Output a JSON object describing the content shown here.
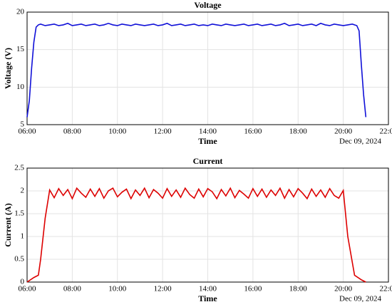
{
  "chart_data": [
    {
      "type": "line",
      "title": "Voltage",
      "xlabel": "Time",
      "ylabel": "Voltage (V)",
      "date_label": "Dec 09, 2024",
      "x": [
        6.0,
        6.1,
        6.2,
        6.3,
        6.4,
        6.5,
        6.6,
        6.8,
        7,
        7.2,
        7.4,
        7.6,
        7.8,
        8,
        8.2,
        8.4,
        8.6,
        8.8,
        9,
        9.2,
        9.4,
        9.6,
        9.8,
        10,
        10.2,
        10.4,
        10.6,
        10.8,
        11,
        11.2,
        11.4,
        11.6,
        11.8,
        12,
        12.2,
        12.4,
        12.6,
        12.8,
        13,
        13.2,
        13.4,
        13.6,
        13.8,
        14,
        14.2,
        14.4,
        14.6,
        14.8,
        15,
        15.2,
        15.4,
        15.6,
        15.8,
        16,
        16.2,
        16.4,
        16.6,
        16.8,
        17,
        17.2,
        17.4,
        17.6,
        17.8,
        18,
        18.2,
        18.4,
        18.6,
        18.8,
        19,
        19.2,
        19.4,
        19.6,
        19.8,
        20,
        20.2,
        20.4,
        20.6,
        20.7,
        20.8,
        20.9,
        21.0
      ],
      "series": [
        {
          "color": "#1010d8",
          "values": [
            6,
            8.2,
            12.5,
            16,
            18,
            18.3,
            18.4,
            18.2,
            18.3,
            18.4,
            18.2,
            18.3,
            18.5,
            18.2,
            18.3,
            18.4,
            18.2,
            18.3,
            18.4,
            18.2,
            18.3,
            18.5,
            18.3,
            18.2,
            18.4,
            18.3,
            18.2,
            18.4,
            18.3,
            18.2,
            18.3,
            18.4,
            18.2,
            18.3,
            18.5,
            18.2,
            18.3,
            18.4,
            18.2,
            18.3,
            18.4,
            18.2,
            18.3,
            18.2,
            18.4,
            18.3,
            18.2,
            18.4,
            18.3,
            18.2,
            18.3,
            18.4,
            18.2,
            18.3,
            18.4,
            18.2,
            18.3,
            18.4,
            18.2,
            18.3,
            18.5,
            18.2,
            18.3,
            18.4,
            18.2,
            18.3,
            18.4,
            18.2,
            18.5,
            18.3,
            18.2,
            18.4,
            18.3,
            18.2,
            18.3,
            18.4,
            18.2,
            17.5,
            13,
            9,
            6
          ]
        }
      ],
      "xlim": [
        6,
        22
      ],
      "xticks": [
        {
          "value": 6,
          "label": "06:00"
        },
        {
          "value": 8,
          "label": "08:00"
        },
        {
          "value": 10,
          "label": "10:00"
        },
        {
          "value": 12,
          "label": "12:00"
        },
        {
          "value": 14,
          "label": "14:00"
        },
        {
          "value": 16,
          "label": "16:00"
        },
        {
          "value": 18,
          "label": "18:00"
        },
        {
          "value": 20,
          "label": "20:00"
        },
        {
          "value": 22,
          "label": "22:00"
        }
      ],
      "ylim": [
        5,
        20
      ],
      "yticks": [
        5,
        10,
        15,
        20
      ],
      "grid": true
    },
    {
      "type": "line",
      "title": "Current",
      "xlabel": "Time",
      "ylabel": "Current (A)",
      "date_label": "Dec 09, 2024",
      "x": [
        6.0,
        6.3,
        6.5,
        6.6,
        6.8,
        7,
        7.2,
        7.4,
        7.6,
        7.8,
        8,
        8.2,
        8.4,
        8.6,
        8.8,
        9,
        9.2,
        9.4,
        9.6,
        9.8,
        10,
        10.2,
        10.4,
        10.6,
        10.8,
        11,
        11.2,
        11.4,
        11.6,
        11.8,
        12,
        12.2,
        12.4,
        12.6,
        12.8,
        13,
        13.2,
        13.4,
        13.6,
        13.8,
        14,
        14.2,
        14.4,
        14.6,
        14.8,
        15,
        15.2,
        15.4,
        15.6,
        15.8,
        16,
        16.2,
        16.4,
        16.6,
        16.8,
        17,
        17.2,
        17.4,
        17.6,
        17.8,
        18,
        18.2,
        18.4,
        18.6,
        18.8,
        19,
        19.2,
        19.4,
        19.6,
        19.8,
        20,
        20.2,
        20.5,
        20.8,
        21.0
      ],
      "series": [
        {
          "color": "#dd0000",
          "values": [
            0,
            0.1,
            0.15,
            0.5,
            1.4,
            2.02,
            1.85,
            2.05,
            1.9,
            2.03,
            1.83,
            2.06,
            1.95,
            1.86,
            2.04,
            1.88,
            2.05,
            1.84,
            2.0,
            2.06,
            1.87,
            1.97,
            2.04,
            1.83,
            2.02,
            1.9,
            2.06,
            1.85,
            2.03,
            1.95,
            1.84,
            2.05,
            1.88,
            2.02,
            1.86,
            2.06,
            1.92,
            1.84,
            2.04,
            1.87,
            2.05,
            1.98,
            1.83,
            2.03,
            1.89,
            2.06,
            1.85,
            2.01,
            1.93,
            1.84,
            2.05,
            1.88,
            2.04,
            1.86,
            2.02,
            1.9,
            2.06,
            1.84,
            2.03,
            1.87,
            2.05,
            1.95,
            1.83,
            2.04,
            1.88,
            2.02,
            1.86,
            2.05,
            1.9,
            1.84,
            2.01,
            1.0,
            0.15,
            0.05,
            0
          ]
        }
      ],
      "xlim": [
        6,
        22
      ],
      "xticks": [
        {
          "value": 6,
          "label": "06:00"
        },
        {
          "value": 8,
          "label": "08:00"
        },
        {
          "value": 10,
          "label": "10:00"
        },
        {
          "value": 12,
          "label": "12:00"
        },
        {
          "value": 14,
          "label": "14:00"
        },
        {
          "value": 16,
          "label": "16:00"
        },
        {
          "value": 18,
          "label": "18:00"
        },
        {
          "value": 20,
          "label": "20:00"
        },
        {
          "value": 22,
          "label": "22:00"
        }
      ],
      "ylim": [
        0,
        2.5
      ],
      "yticks": [
        0,
        0.5,
        1,
        1.5,
        2,
        2.5
      ],
      "grid": true
    }
  ]
}
